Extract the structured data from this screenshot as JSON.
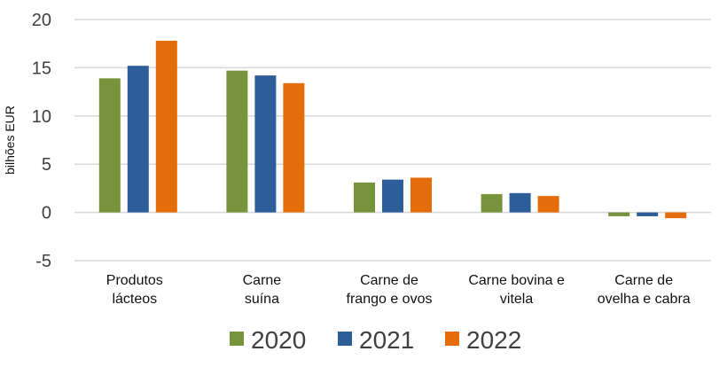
{
  "chart_data": {
    "type": "bar",
    "title": "",
    "ylabel": "bilhões EUR",
    "xlabel": "",
    "ylim": [
      -5,
      20
    ],
    "yticks": [
      -5,
      0,
      5,
      10,
      15,
      20
    ],
    "grid": true,
    "legend_position": "bottom",
    "categories": [
      [
        "Produtos",
        "lácteos"
      ],
      [
        "Carne",
        "suína"
      ],
      [
        "Carne de",
        "frango e ovos"
      ],
      [
        "Carne bovina e",
        "vitela"
      ],
      [
        "Carne de",
        "ovelha e cabra"
      ]
    ],
    "series": [
      {
        "name": "2020",
        "color": "#77933C",
        "values": [
          13.9,
          14.7,
          3.1,
          1.9,
          -0.4
        ]
      },
      {
        "name": "2021",
        "color": "#2E5E9A",
        "values": [
          15.2,
          14.2,
          3.4,
          2.0,
          -0.4
        ]
      },
      {
        "name": "2022",
        "color": "#E46C0A",
        "values": [
          17.8,
          13.4,
          3.6,
          1.7,
          -0.6
        ]
      }
    ]
  }
}
